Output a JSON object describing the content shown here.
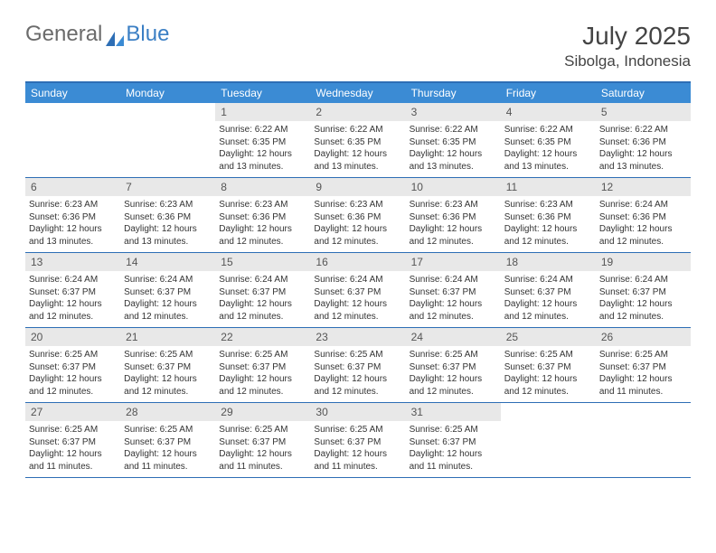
{
  "brand": {
    "part1": "General",
    "part2": "Blue"
  },
  "title": "July 2025",
  "location": "Sibolga, Indonesia",
  "colors": {
    "header_bg": "#3b8bd4",
    "header_text": "#ffffff",
    "border": "#2d6eb5",
    "daynum_bg": "#e8e8e8",
    "text": "#333333"
  },
  "calendar": {
    "type": "calendar-grid",
    "weekdays": [
      "Sunday",
      "Monday",
      "Tuesday",
      "Wednesday",
      "Thursday",
      "Friday",
      "Saturday"
    ],
    "weeks": [
      [
        null,
        null,
        {
          "n": "1",
          "sunrise": "6:22 AM",
          "sunset": "6:35 PM",
          "daylight": "12 hours and 13 minutes."
        },
        {
          "n": "2",
          "sunrise": "6:22 AM",
          "sunset": "6:35 PM",
          "daylight": "12 hours and 13 minutes."
        },
        {
          "n": "3",
          "sunrise": "6:22 AM",
          "sunset": "6:35 PM",
          "daylight": "12 hours and 13 minutes."
        },
        {
          "n": "4",
          "sunrise": "6:22 AM",
          "sunset": "6:35 PM",
          "daylight": "12 hours and 13 minutes."
        },
        {
          "n": "5",
          "sunrise": "6:22 AM",
          "sunset": "6:36 PM",
          "daylight": "12 hours and 13 minutes."
        }
      ],
      [
        {
          "n": "6",
          "sunrise": "6:23 AM",
          "sunset": "6:36 PM",
          "daylight": "12 hours and 13 minutes."
        },
        {
          "n": "7",
          "sunrise": "6:23 AM",
          "sunset": "6:36 PM",
          "daylight": "12 hours and 13 minutes."
        },
        {
          "n": "8",
          "sunrise": "6:23 AM",
          "sunset": "6:36 PM",
          "daylight": "12 hours and 12 minutes."
        },
        {
          "n": "9",
          "sunrise": "6:23 AM",
          "sunset": "6:36 PM",
          "daylight": "12 hours and 12 minutes."
        },
        {
          "n": "10",
          "sunrise": "6:23 AM",
          "sunset": "6:36 PM",
          "daylight": "12 hours and 12 minutes."
        },
        {
          "n": "11",
          "sunrise": "6:23 AM",
          "sunset": "6:36 PM",
          "daylight": "12 hours and 12 minutes."
        },
        {
          "n": "12",
          "sunrise": "6:24 AM",
          "sunset": "6:36 PM",
          "daylight": "12 hours and 12 minutes."
        }
      ],
      [
        {
          "n": "13",
          "sunrise": "6:24 AM",
          "sunset": "6:37 PM",
          "daylight": "12 hours and 12 minutes."
        },
        {
          "n": "14",
          "sunrise": "6:24 AM",
          "sunset": "6:37 PM",
          "daylight": "12 hours and 12 minutes."
        },
        {
          "n": "15",
          "sunrise": "6:24 AM",
          "sunset": "6:37 PM",
          "daylight": "12 hours and 12 minutes."
        },
        {
          "n": "16",
          "sunrise": "6:24 AM",
          "sunset": "6:37 PM",
          "daylight": "12 hours and 12 minutes."
        },
        {
          "n": "17",
          "sunrise": "6:24 AM",
          "sunset": "6:37 PM",
          "daylight": "12 hours and 12 minutes."
        },
        {
          "n": "18",
          "sunrise": "6:24 AM",
          "sunset": "6:37 PM",
          "daylight": "12 hours and 12 minutes."
        },
        {
          "n": "19",
          "sunrise": "6:24 AM",
          "sunset": "6:37 PM",
          "daylight": "12 hours and 12 minutes."
        }
      ],
      [
        {
          "n": "20",
          "sunrise": "6:25 AM",
          "sunset": "6:37 PM",
          "daylight": "12 hours and 12 minutes."
        },
        {
          "n": "21",
          "sunrise": "6:25 AM",
          "sunset": "6:37 PM",
          "daylight": "12 hours and 12 minutes."
        },
        {
          "n": "22",
          "sunrise": "6:25 AM",
          "sunset": "6:37 PM",
          "daylight": "12 hours and 12 minutes."
        },
        {
          "n": "23",
          "sunrise": "6:25 AM",
          "sunset": "6:37 PM",
          "daylight": "12 hours and 12 minutes."
        },
        {
          "n": "24",
          "sunrise": "6:25 AM",
          "sunset": "6:37 PM",
          "daylight": "12 hours and 12 minutes."
        },
        {
          "n": "25",
          "sunrise": "6:25 AM",
          "sunset": "6:37 PM",
          "daylight": "12 hours and 12 minutes."
        },
        {
          "n": "26",
          "sunrise": "6:25 AM",
          "sunset": "6:37 PM",
          "daylight": "12 hours and 11 minutes."
        }
      ],
      [
        {
          "n": "27",
          "sunrise": "6:25 AM",
          "sunset": "6:37 PM",
          "daylight": "12 hours and 11 minutes."
        },
        {
          "n": "28",
          "sunrise": "6:25 AM",
          "sunset": "6:37 PM",
          "daylight": "12 hours and 11 minutes."
        },
        {
          "n": "29",
          "sunrise": "6:25 AM",
          "sunset": "6:37 PM",
          "daylight": "12 hours and 11 minutes."
        },
        {
          "n": "30",
          "sunrise": "6:25 AM",
          "sunset": "6:37 PM",
          "daylight": "12 hours and 11 minutes."
        },
        {
          "n": "31",
          "sunrise": "6:25 AM",
          "sunset": "6:37 PM",
          "daylight": "12 hours and 11 minutes."
        },
        null,
        null
      ]
    ],
    "labels": {
      "sunrise": "Sunrise:",
      "sunset": "Sunset:",
      "daylight": "Daylight:"
    }
  }
}
